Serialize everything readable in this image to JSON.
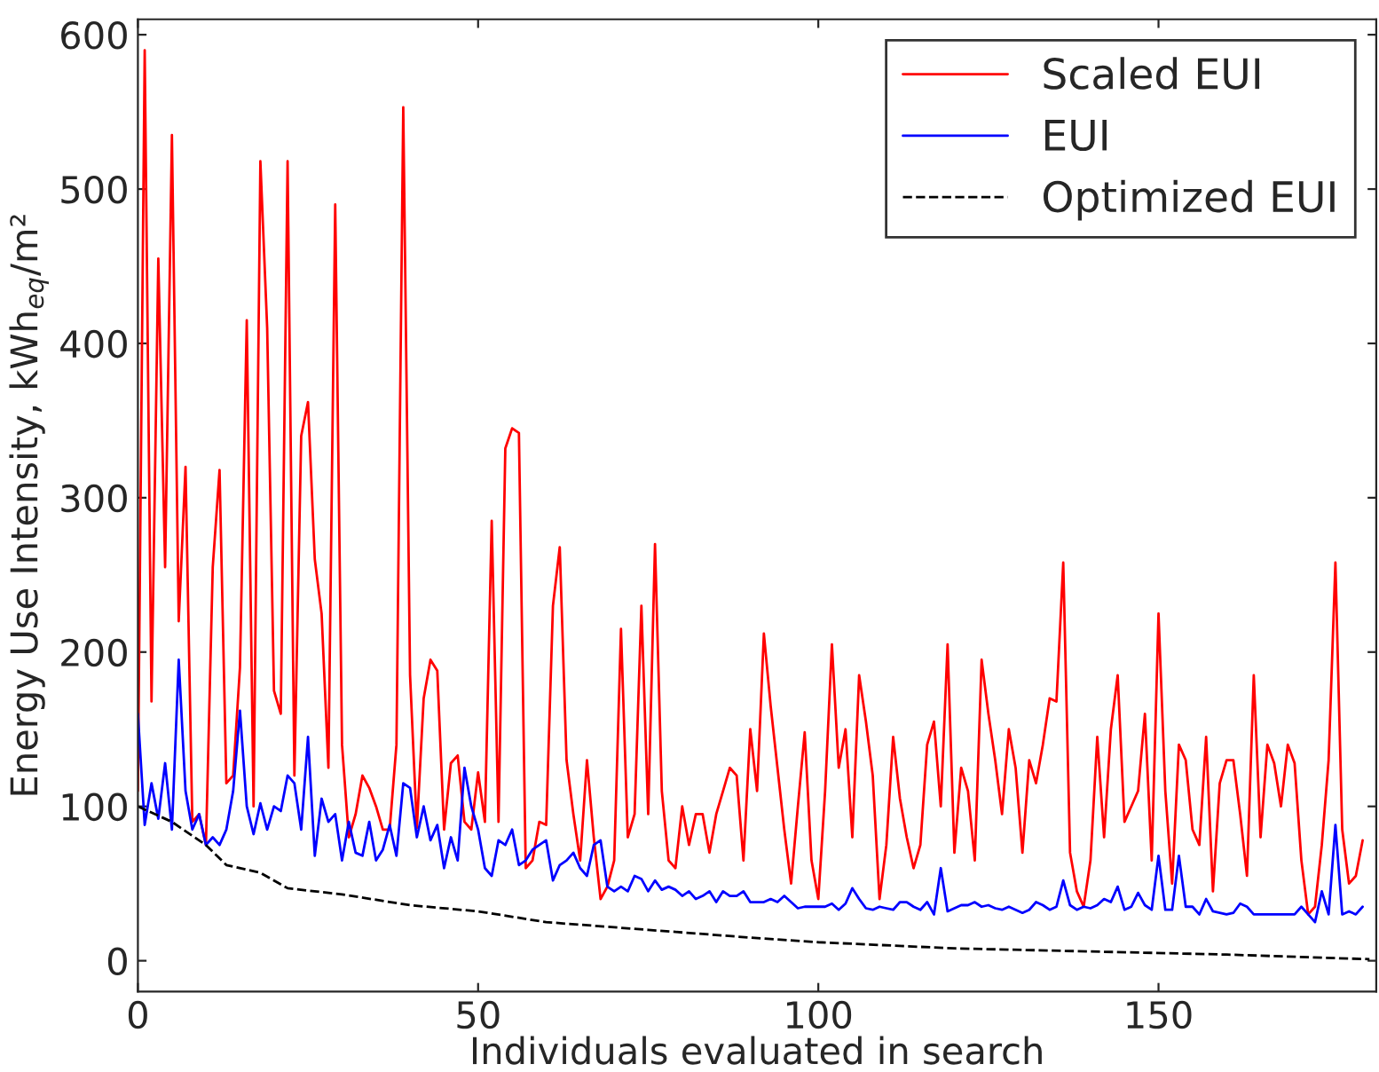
{
  "chart_data": {
    "type": "line",
    "xlabel": "Individuals evaluated in search",
    "ylabel": "Energy Use Intensity, kWh$_{eq}$/m²",
    "xlim": [
      0,
      182
    ],
    "xticks": [
      0,
      50,
      100,
      150
    ],
    "ylim": [
      -20,
      610
    ],
    "yticks": [
      0,
      100,
      200,
      300,
      400,
      500,
      600
    ],
    "grid": false,
    "legend": "top right",
    "series": [
      {
        "name": "Scaled EUI",
        "color": "#ff0000",
        "line_style": "solid",
        "x": [
          0,
          1,
          2,
          3,
          4,
          5,
          6,
          7,
          8,
          9,
          10,
          11,
          12,
          13,
          14,
          15,
          16,
          17,
          18,
          19,
          20,
          21,
          22,
          23,
          24,
          25,
          26,
          27,
          28,
          29,
          30,
          31,
          32,
          33,
          34,
          35,
          36,
          37,
          38,
          39,
          40,
          41,
          42,
          43,
          44,
          45,
          46,
          47,
          48,
          49,
          50,
          51,
          52,
          53,
          54,
          55,
          56,
          57,
          58,
          59,
          60,
          61,
          62,
          63,
          64,
          65,
          66,
          67,
          68,
          69,
          70,
          71,
          72,
          73,
          74,
          75,
          76,
          77,
          78,
          79,
          80,
          81,
          82,
          83,
          84,
          85,
          86,
          87,
          88,
          89,
          90,
          91,
          92,
          93,
          94,
          95,
          96,
          97,
          98,
          99,
          100,
          101,
          102,
          103,
          104,
          105,
          106,
          107,
          108,
          109,
          110,
          111,
          112,
          113,
          114,
          115,
          116,
          117,
          118,
          119,
          120,
          121,
          122,
          123,
          124,
          125,
          126,
          127,
          128,
          129,
          130,
          131,
          132,
          133,
          134,
          135,
          136,
          137,
          138,
          139,
          140,
          141,
          142,
          143,
          144,
          145,
          146,
          147,
          148,
          149,
          150,
          151,
          152,
          153,
          154,
          155,
          156,
          157,
          158,
          159,
          160,
          161,
          162,
          163,
          164,
          165,
          166,
          167,
          168,
          169,
          170,
          171,
          172,
          173,
          174,
          175,
          176,
          177,
          178,
          179,
          180
        ],
        "values": [
          110,
          590,
          168,
          455,
          255,
          535,
          220,
          320,
          90,
          95,
          75,
          255,
          318,
          115,
          120,
          190,
          415,
          100,
          518,
          410,
          175,
          160,
          518,
          120,
          340,
          362,
          260,
          225,
          125,
          490,
          140,
          80,
          95,
          120,
          112,
          100,
          85,
          85,
          140,
          553,
          185,
          86,
          170,
          195,
          188,
          85,
          128,
          133,
          90,
          85,
          122,
          90,
          285,
          90,
          332,
          345,
          342,
          60,
          65,
          90,
          88,
          230,
          268,
          130,
          95,
          65,
          130,
          80,
          40,
          48,
          65,
          215,
          80,
          95,
          230,
          95,
          270,
          110,
          65,
          60,
          100,
          75,
          95,
          95,
          70,
          95,
          110,
          125,
          120,
          65,
          150,
          110,
          212,
          165,
          125,
          85,
          50,
          100,
          148,
          65,
          40,
          110,
          205,
          125,
          150,
          80,
          185,
          155,
          120,
          40,
          75,
          145,
          105,
          80,
          60,
          75,
          140,
          155,
          100,
          205,
          70,
          125,
          110,
          65,
          195,
          160,
          130,
          95,
          150,
          125,
          70,
          130,
          115,
          140,
          170,
          168,
          258,
          70,
          45,
          35,
          65,
          145,
          80,
          150,
          185,
          90,
          100,
          110,
          160,
          65,
          225,
          110,
          50,
          140,
          130,
          85,
          75,
          145,
          45,
          115,
          130,
          130,
          95,
          55,
          185,
          80,
          140,
          128,
          100,
          140,
          128,
          65,
          30,
          35,
          75,
          130,
          258,
          85,
          50,
          55,
          78
        ]
      },
      {
        "name": "EUI",
        "color": "#0000ff",
        "line_style": "solid",
        "x": [
          0,
          1,
          2,
          3,
          4,
          5,
          6,
          7,
          8,
          9,
          10,
          11,
          12,
          13,
          14,
          15,
          16,
          17,
          18,
          19,
          20,
          21,
          22,
          23,
          24,
          25,
          26,
          27,
          28,
          29,
          30,
          31,
          32,
          33,
          34,
          35,
          36,
          37,
          38,
          39,
          40,
          41,
          42,
          43,
          44,
          45,
          46,
          47,
          48,
          49,
          50,
          51,
          52,
          53,
          54,
          55,
          56,
          57,
          58,
          59,
          60,
          61,
          62,
          63,
          64,
          65,
          66,
          67,
          68,
          69,
          70,
          71,
          72,
          73,
          74,
          75,
          76,
          77,
          78,
          79,
          80,
          81,
          82,
          83,
          84,
          85,
          86,
          87,
          88,
          89,
          90,
          91,
          92,
          93,
          94,
          95,
          96,
          97,
          98,
          99,
          100,
          101,
          102,
          103,
          104,
          105,
          106,
          107,
          108,
          109,
          110,
          111,
          112,
          113,
          114,
          115,
          116,
          117,
          118,
          119,
          120,
          121,
          122,
          123,
          124,
          125,
          126,
          127,
          128,
          129,
          130,
          131,
          132,
          133,
          134,
          135,
          136,
          137,
          138,
          139,
          140,
          141,
          142,
          143,
          144,
          145,
          146,
          147,
          148,
          149,
          150,
          151,
          152,
          153,
          154,
          155,
          156,
          157,
          158,
          159,
          160,
          161,
          162,
          163,
          164,
          165,
          166,
          167,
          168,
          169,
          170,
          171,
          172,
          173,
          174,
          175,
          176,
          177,
          178,
          179,
          180
        ],
        "values": [
          160,
          88,
          115,
          92,
          128,
          85,
          195,
          110,
          85,
          95,
          75,
          80,
          75,
          85,
          110,
          162,
          100,
          82,
          102,
          85,
          100,
          97,
          120,
          115,
          85,
          145,
          68,
          105,
          90,
          95,
          65,
          90,
          70,
          68,
          90,
          65,
          72,
          88,
          68,
          115,
          112,
          80,
          100,
          78,
          88,
          60,
          80,
          65,
          125,
          100,
          85,
          60,
          55,
          78,
          75,
          85,
          62,
          65,
          72,
          75,
          78,
          52,
          62,
          65,
          70,
          60,
          55,
          75,
          78,
          48,
          45,
          48,
          45,
          55,
          53,
          45,
          52,
          46,
          48,
          46,
          42,
          45,
          40,
          42,
          45,
          38,
          45,
          42,
          42,
          45,
          38,
          38,
          38,
          40,
          38,
          42,
          38,
          34,
          35,
          35,
          35,
          35,
          37,
          33,
          37,
          47,
          40,
          34,
          33,
          35,
          34,
          33,
          38,
          38,
          35,
          33,
          38,
          30,
          60,
          32,
          34,
          36,
          36,
          38,
          35,
          36,
          34,
          33,
          35,
          33,
          31,
          33,
          38,
          36,
          33,
          35,
          52,
          36,
          33,
          35,
          34,
          36,
          40,
          38,
          48,
          33,
          35,
          44,
          36,
          33,
          68,
          33,
          33,
          68,
          35,
          35,
          30,
          40,
          32,
          31,
          30,
          31,
          37,
          35,
          30,
          30,
          30,
          30,
          30,
          30,
          30,
          35,
          30,
          25,
          45,
          30,
          88,
          30,
          32,
          30,
          35
        ]
      },
      {
        "name": "Optimized EUI",
        "color": "#000000",
        "line_style": "dashed",
        "x": [
          0,
          5,
          10,
          13,
          18,
          22,
          30,
          40,
          50,
          60,
          75,
          90,
          100,
          120,
          140,
          160,
          181
        ],
        "values": [
          100,
          90,
          75,
          62,
          57,
          47,
          43,
          36,
          32,
          25,
          20,
          15,
          12,
          8,
          6,
          4,
          1
        ]
      }
    ]
  }
}
